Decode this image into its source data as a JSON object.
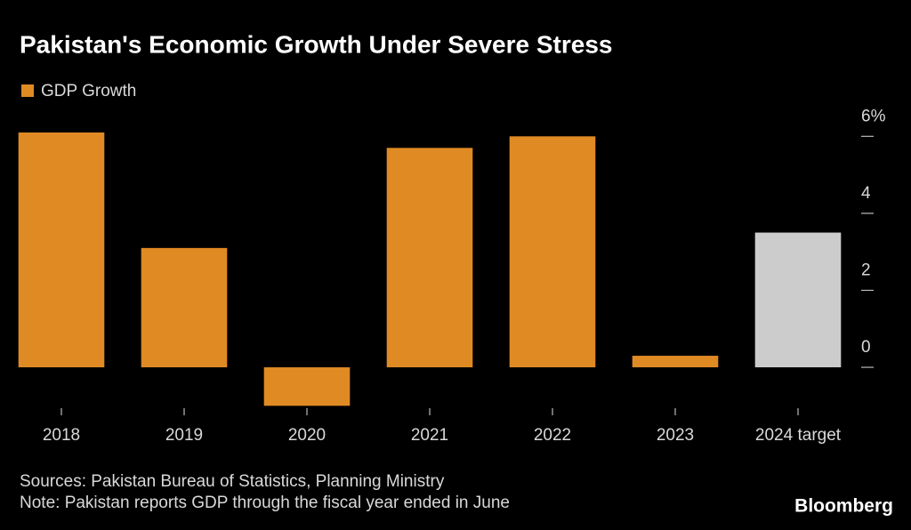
{
  "chart_data": {
    "type": "bar",
    "title": "Pakistan's Economic Growth Under Severe Stress",
    "categories": [
      "2018",
      "2019",
      "2020",
      "2021",
      "2022",
      "2023",
      "2024 target"
    ],
    "series": [
      {
        "name": "GDP Growth",
        "color": "#e08a24",
        "colors": [
          "#e08a24",
          "#e08a24",
          "#e08a24",
          "#e08a24",
          "#e08a24",
          "#e08a24",
          "#cccccc"
        ],
        "values": [
          6.1,
          3.1,
          -1.0,
          5.7,
          6.0,
          0.3,
          3.5
        ]
      }
    ],
    "ylim": [
      -1.2,
      6.4
    ],
    "yticks": [
      0,
      2,
      4,
      {
        "value": 6,
        "label": "6%"
      }
    ],
    "axis_side": "right",
    "legend": "top-left",
    "source": "Sources: Pakistan Bureau of Statistics, Planning Ministry",
    "note": "Note: Pakistan reports GDP through the fiscal year ended in June",
    "brand": "Bloomberg"
  }
}
